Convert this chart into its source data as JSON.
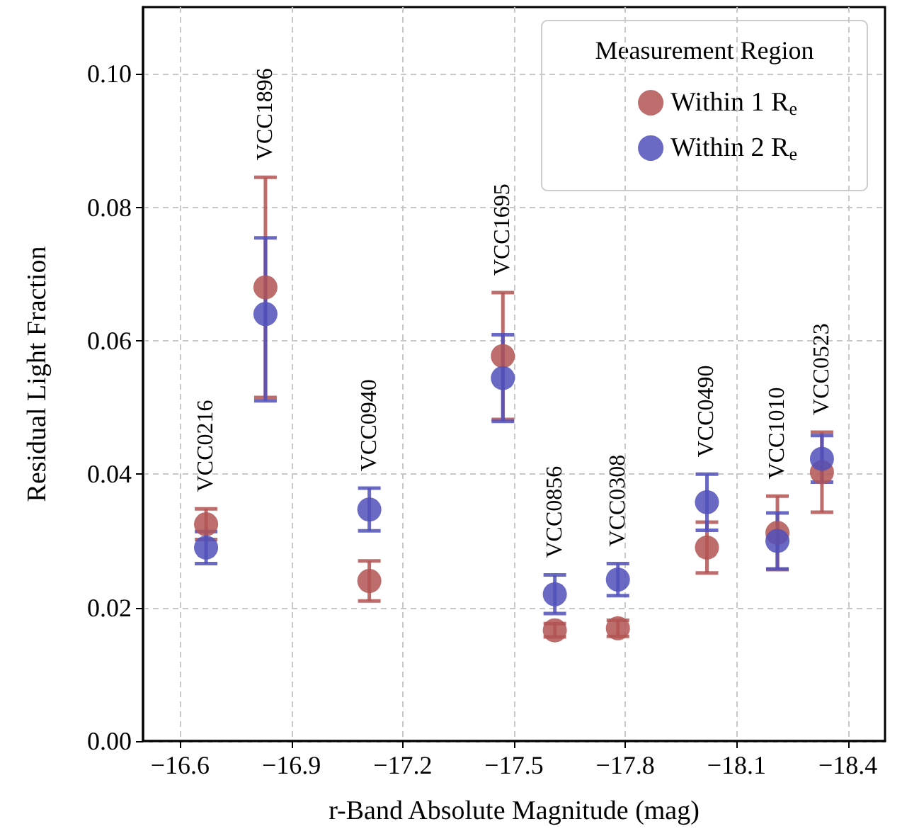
{
  "chart_data": {
    "type": "scatter",
    "xlabel": "r-Band Absolute Magnitude (mag)",
    "ylabel": "Residual Light Fraction",
    "legend_title": "Measurement Region",
    "x": [
      -16.67,
      -16.83,
      -17.11,
      -17.47,
      -17.61,
      -17.78,
      -18.02,
      -18.21,
      -18.33
    ],
    "series": [
      {
        "name": "Within 1 R$_{e}$",
        "color": "#b35353",
        "values": [
          0.0325,
          0.068,
          0.024,
          0.0577,
          0.0166,
          0.0169,
          0.029,
          0.0312,
          0.0403
        ],
        "errors": [
          0.0023,
          0.0165,
          0.003,
          0.0095,
          0.001,
          0.0012,
          0.0038,
          0.0055,
          0.006
        ]
      },
      {
        "name": "Within 2 R$_{e}$",
        "color": "#5050bb",
        "values": [
          0.029,
          0.064,
          0.0347,
          0.0544,
          0.022,
          0.0242,
          0.0358,
          0.03,
          0.0423
        ],
        "errors": [
          0.0024,
          [
            0.051,
            0.0754
          ],
          0.0032,
          0.0065,
          0.0029,
          0.0024,
          0.0042,
          0.0042,
          0.0035
        ]
      }
    ],
    "annotations": [
      {
        "text": "VCC0216",
        "x": -16.67,
        "y": 0.0348
      },
      {
        "text": "VCC1896",
        "x": -16.83,
        "y": 0.0845
      },
      {
        "text": "VCC0940",
        "x": -17.11,
        "y": 0.0379
      },
      {
        "text": "VCC1695",
        "x": -17.47,
        "y": 0.0672
      },
      {
        "text": "VCC0856",
        "x": -17.61,
        "y": 0.0249
      },
      {
        "text": "VCC0308",
        "x": -17.78,
        "y": 0.0266
      },
      {
        "text": "VCC0490",
        "x": -18.02,
        "y": 0.04
      },
      {
        "text": "VCC1010",
        "x": -18.21,
        "y": 0.0367
      },
      {
        "text": "VCC0523",
        "x": -18.33,
        "y": 0.0463
      }
    ],
    "xlim": [
      -16.5,
      -18.5
    ],
    "xticks": [
      -16.6,
      -16.9,
      -17.2,
      -17.5,
      -17.8,
      -18.1,
      -18.4
    ],
    "ylim": [
      0,
      0.11
    ],
    "yticks": [
      {
        "value": 0,
        "label": "0.00"
      },
      {
        "value": 0.02,
        "label": "0.02"
      },
      {
        "value": 0.04,
        "label": "0.04"
      },
      {
        "value": 0.06,
        "label": "0.06"
      },
      {
        "value": 0.08,
        "label": "0.08"
      },
      {
        "value": 0.1,
        "label": "0.10"
      }
    ],
    "grid": true,
    "legend": "top right",
    "marker": "circle"
  }
}
